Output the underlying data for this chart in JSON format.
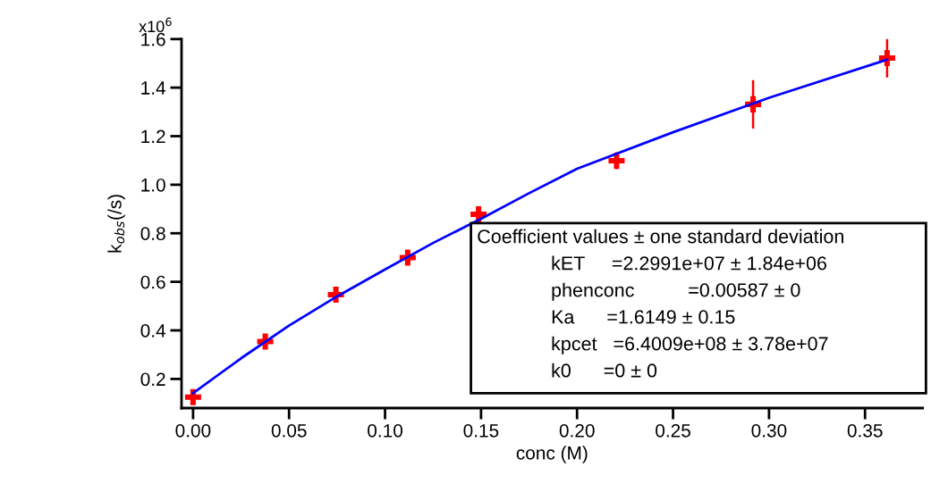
{
  "chart_data": {
    "type": "scatter",
    "xlabel": "conc (M)",
    "ylabel": "k$_{obs}$(/s)",
    "xlim": [
      -0.006,
      0.38
    ],
    "ylim": [
      0.08,
      1.6
    ],
    "xticks": [
      {
        "value": 0,
        "label": "0.00"
      },
      {
        "value": 0.05,
        "label": "0.05"
      },
      {
        "value": 0.1,
        "label": "0.10"
      },
      {
        "value": 0.15,
        "label": "0.15"
      },
      {
        "value": 0.2,
        "label": "0.20"
      },
      {
        "value": 0.25,
        "label": "0.25"
      },
      {
        "value": 0.3,
        "label": "0.30"
      },
      {
        "value": 0.35,
        "label": "0.35"
      }
    ],
    "yticks": [
      0.2,
      0.4,
      0.6,
      0.8,
      {
        "value": 1.0,
        "label": "1.0"
      },
      1.2,
      1.4,
      1.6
    ],
    "grid": false,
    "legend": false,
    "series": [
      {
        "color": "#ff0000",
        "marker": "cross",
        "x": [
          0,
          0.0376,
          0.0744,
          0.1118,
          0.1487,
          0.2206,
          0.2917,
          0.3615
        ],
        "values": [
          0.125,
          0.354,
          0.547,
          0.7,
          0.878,
          1.099,
          1.331,
          1.522
        ],
        "errors": [
          0.008,
          0.015,
          0.01,
          0.012,
          0.01,
          0.035,
          0.1,
          0.08
        ]
      },
      {
        "type": "line",
        "color": "#0000ff",
        "marker": "none",
        "line_style": "solid",
        "x": [
          0,
          0.025,
          0.05,
          0.075,
          0.1,
          0.125,
          0.15,
          0.175,
          0.2,
          0.25,
          0.3,
          0.3615
        ],
        "values": [
          0.141,
          0.285,
          0.42,
          0.54,
          0.651,
          0.76,
          0.86,
          0.965,
          1.066,
          1.216,
          1.358,
          1.515
        ]
      }
    ],
    "annotations": [
      "x10$^{6}$",
      "Coefficient values ± one standard deviation",
      "kET     =2.2991e+07 ± 1.84e+06",
      "phenconc          =0.00587 ± 0",
      "Ka      =1.6149 ± 0.15",
      "kpcet   =6.4009e+08 ± 3.78e+07",
      "k0      =0 ± 0"
    ]
  }
}
